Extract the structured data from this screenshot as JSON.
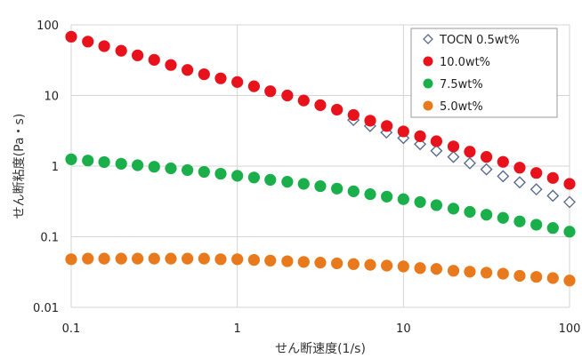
{
  "chart_data": {
    "type": "scatter",
    "title": "",
    "xlabel": "せん断速度(1/s)",
    "ylabel": "せん断粘度(Pa・s)",
    "xscale": "log",
    "yscale": "log",
    "xlim": [
      0.1,
      100
    ],
    "ylim": [
      0.01,
      100
    ],
    "grid": true,
    "legend_position": "top-right",
    "x_tick_labels": [
      "0.1",
      "1",
      "10",
      "100"
    ],
    "y_tick_labels": [
      "0.01",
      "0.1",
      "1",
      "10",
      "100"
    ],
    "series": [
      {
        "name": "TOCN 0.5wt%",
        "marker": "diamond-open",
        "color": "#5b6b8c",
        "x": [
          5.0,
          6.3,
          7.9,
          10.0,
          12.6,
          15.8,
          20.0,
          25.1,
          31.6,
          39.8,
          50.1,
          63.1,
          79.4,
          100
        ],
        "y": [
          4.5,
          3.7,
          3.0,
          2.5,
          2.05,
          1.65,
          1.35,
          1.1,
          0.9,
          0.72,
          0.59,
          0.47,
          0.38,
          0.31
        ]
      },
      {
        "name": "10.0wt%",
        "marker": "circle",
        "color": "#e8121c",
        "x": [
          0.1,
          0.126,
          0.158,
          0.2,
          0.251,
          0.316,
          0.398,
          0.501,
          0.631,
          0.794,
          1.0,
          1.26,
          1.58,
          2.0,
          2.51,
          3.16,
          3.98,
          5.01,
          6.31,
          7.94,
          10.0,
          12.6,
          15.8,
          20.0,
          25.1,
          31.6,
          39.8,
          50.1,
          63.1,
          79.4,
          100
        ],
        "y": [
          68,
          58,
          50,
          43,
          37,
          32,
          27,
          23,
          20,
          17.5,
          15.5,
          13.5,
          11.5,
          10,
          8.5,
          7.3,
          6.3,
          5.3,
          4.4,
          3.7,
          3.1,
          2.65,
          2.25,
          1.9,
          1.6,
          1.35,
          1.15,
          0.95,
          0.8,
          0.68,
          0.56
        ]
      },
      {
        "name": "7.5wt%",
        "marker": "circle",
        "color": "#1aaf4b",
        "x": [
          0.1,
          0.126,
          0.158,
          0.2,
          0.251,
          0.316,
          0.398,
          0.501,
          0.631,
          0.794,
          1.0,
          1.26,
          1.58,
          2.0,
          2.51,
          3.16,
          3.98,
          5.01,
          6.31,
          7.94,
          10.0,
          12.6,
          15.8,
          20.0,
          25.1,
          31.6,
          39.8,
          50.1,
          63.1,
          79.4,
          100
        ],
        "y": [
          1.25,
          1.2,
          1.14,
          1.08,
          1.03,
          0.98,
          0.93,
          0.88,
          0.83,
          0.78,
          0.73,
          0.69,
          0.64,
          0.6,
          0.56,
          0.52,
          0.48,
          0.44,
          0.4,
          0.37,
          0.34,
          0.31,
          0.28,
          0.25,
          0.225,
          0.205,
          0.185,
          0.165,
          0.148,
          0.133,
          0.118
        ]
      },
      {
        "name": "5.0wt%",
        "marker": "circle",
        "color": "#e8791c",
        "x": [
          0.1,
          0.126,
          0.158,
          0.2,
          0.251,
          0.316,
          0.398,
          0.501,
          0.631,
          0.794,
          1.0,
          1.26,
          1.58,
          2.0,
          2.51,
          3.16,
          3.98,
          5.01,
          6.31,
          7.94,
          10.0,
          12.6,
          15.8,
          20.0,
          25.1,
          31.6,
          39.8,
          50.1,
          63.1,
          79.4,
          100
        ],
        "y": [
          0.048,
          0.049,
          0.049,
          0.049,
          0.049,
          0.049,
          0.049,
          0.049,
          0.049,
          0.048,
          0.048,
          0.047,
          0.046,
          0.045,
          0.044,
          0.043,
          0.042,
          0.041,
          0.04,
          0.039,
          0.038,
          0.036,
          0.035,
          0.033,
          0.032,
          0.031,
          0.03,
          0.028,
          0.027,
          0.026,
          0.024
        ]
      }
    ]
  }
}
